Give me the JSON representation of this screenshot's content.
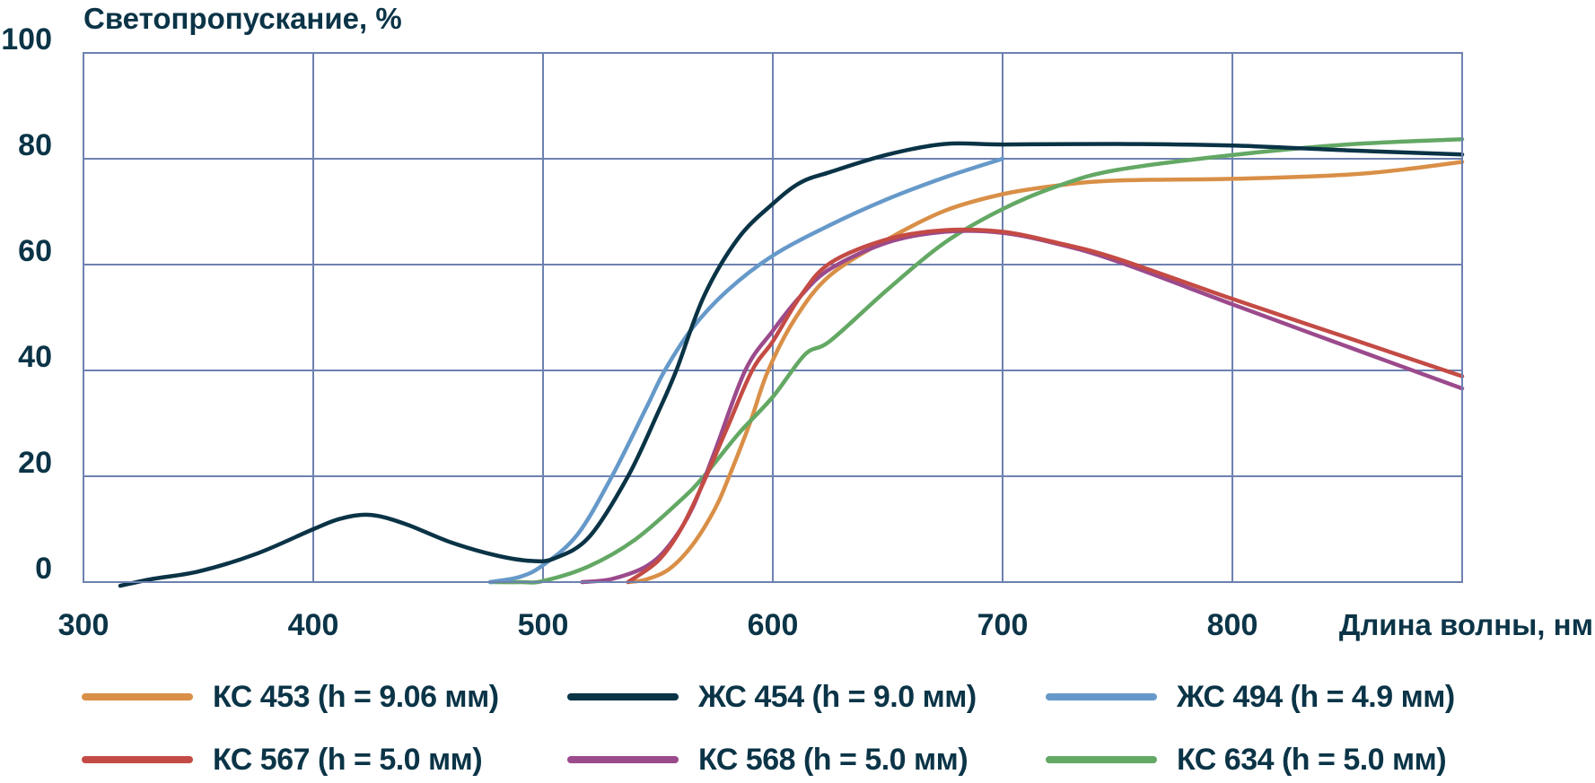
{
  "chart_data": {
    "type": "line",
    "title": "",
    "ylabel": "Светопропускание, %",
    "xlabel": "Длина волны, нм",
    "xlim": [
      300,
      900
    ],
    "ylim": [
      0,
      100
    ],
    "xticks": [
      "300",
      "400",
      "500",
      "600",
      "700",
      "800"
    ],
    "yticks": [
      "0",
      "20",
      "40",
      "60",
      "80",
      "100"
    ],
    "grid": true,
    "legend_position": "bottom",
    "colors": {
      "text": "#0b3447",
      "grid": "#6d81b0"
    },
    "series": [
      {
        "name": "КС 453 (h = 9.06 мм)",
        "color": "#d98f47",
        "x": [
          537,
          545,
          555,
          565,
          575,
          581,
          590,
          598,
          610,
          625,
          650,
          675,
          700,
          725,
          750,
          800,
          850,
          875,
          900
        ],
        "y": [
          0,
          0.5,
          2.5,
          7,
          14,
          20,
          30,
          40,
          50,
          58,
          64.8,
          70.2,
          73.3,
          75,
          75.9,
          76.2,
          77,
          78,
          79.4
        ]
      },
      {
        "name": "ЖС 454 (h = 9.0 мм)",
        "color": "#0a3346",
        "x": [
          316,
          330,
          350,
          375,
          400,
          412,
          425,
          440,
          460,
          480,
          495,
          505,
          520,
          537,
          550,
          558,
          570,
          585,
          600,
          612,
          625,
          650,
          675,
          700,
          750,
          800,
          850,
          900
        ],
        "y": [
          -0.7,
          0.6,
          2,
          5.3,
          10,
          12,
          12.7,
          11,
          7.5,
          5,
          4,
          4.5,
          8.5,
          20,
          32,
          40,
          54,
          65,
          71.5,
          75.5,
          77.5,
          80.8,
          82.8,
          82.7,
          82.8,
          82.5,
          81.6,
          80.8
        ]
      },
      {
        "name": "ЖС 494 (h = 4.9 мм)",
        "color": "#6699c9",
        "x": [
          477,
          490,
          500,
          515,
          530,
          545,
          553,
          565,
          580,
          600,
          625,
          650,
          675,
          700
        ],
        "y": [
          0,
          1,
          3.2,
          9,
          20,
          33,
          40,
          48,
          55,
          61.7,
          67.5,
          72.4,
          76.5,
          80
        ]
      },
      {
        "name": "КС 567 (h = 5.0 мм)",
        "color": "#c44b45",
        "x": [
          537,
          550,
          560,
          570,
          580,
          591,
          600,
          612,
          625,
          650,
          675,
          700,
          725,
          750,
          800,
          850,
          900
        ],
        "y": [
          0,
          4,
          10,
          19,
          29,
          40,
          45.5,
          54,
          60.3,
          64.8,
          66.5,
          66.2,
          64,
          61.1,
          53.5,
          46.2,
          38.9
        ]
      },
      {
        "name": "КС 568 (h = 5.0 мм)",
        "color": "#9b4a8c",
        "x": [
          517,
          530,
          545,
          555,
          565,
          575,
          588,
          600,
          612,
          625,
          650,
          675,
          700,
          725,
          750,
          800,
          850,
          900
        ],
        "y": [
          0,
          0.6,
          3,
          7,
          14,
          25,
          40,
          47.5,
          54,
          59.2,
          64.2,
          66.2,
          66,
          63.8,
          60.6,
          52.5,
          44.5,
          36.6
        ]
      },
      {
        "name": "КС 634 (h = 5.0 мм)",
        "color": "#63a864",
        "x": [
          477,
          490,
          500,
          520,
          540,
          560,
          570,
          585,
          600,
          614,
          625,
          650,
          675,
          700,
          725,
          750,
          800,
          850,
          900
        ],
        "y": [
          0,
          0,
          0.2,
          3,
          8,
          15.5,
          20,
          28,
          35,
          43,
          45.6,
          55.3,
          64.2,
          70.5,
          75,
          77.9,
          80.7,
          82.7,
          83.7
        ]
      }
    ]
  }
}
